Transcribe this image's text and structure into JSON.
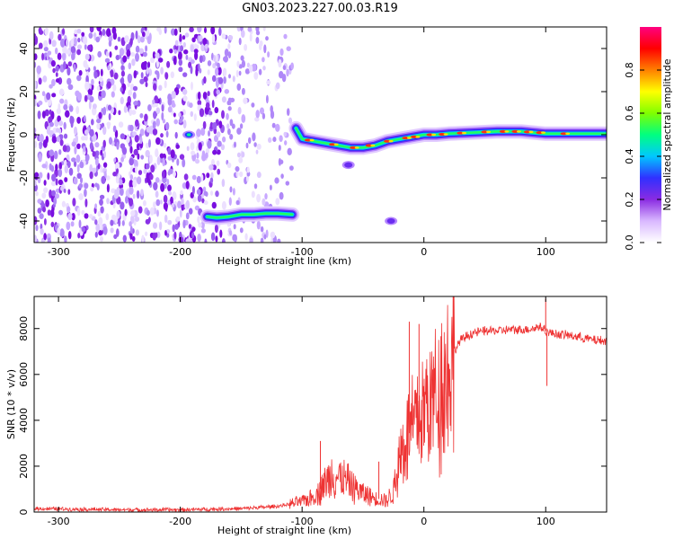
{
  "title": "GN03.2023.227.00.03.R19",
  "chart_data": [
    {
      "type": "heatmap",
      "xlabel": "Height of straight line (km)",
      "ylabel": "Frequency (Hz)",
      "xlim": [
        -320,
        150
      ],
      "ylim": [
        -50,
        50
      ],
      "xticks": [
        -300,
        -200,
        -100,
        0,
        100
      ],
      "yticks": [
        -40,
        -20,
        0,
        20,
        40
      ],
      "noise_region_x": [
        -320,
        -108
      ],
      "echo_tracks": [
        {
          "name": "lower echo",
          "x": [
            -178,
            -170,
            -160,
            -150,
            -140,
            -130,
            -120,
            -108
          ],
          "y": [
            -38,
            -38.5,
            -38,
            -37,
            -37,
            -36.5,
            -36.5,
            -37
          ]
        },
        {
          "name": "trail echo",
          "x": [
            -105,
            -100,
            -90,
            -80,
            -70,
            -60,
            -50,
            -40,
            -30,
            -20,
            -10,
            0,
            10,
            20,
            40,
            60,
            80,
            90,
            100,
            120,
            150
          ],
          "y": [
            3,
            -2,
            -3,
            -4,
            -5,
            -6,
            -6,
            -5,
            -3,
            -2,
            -1,
            0,
            0,
            0.5,
            1,
            1.5,
            1.5,
            1,
            0.5,
            0.5,
            0.5
          ]
        }
      ],
      "isolated_blobs": [
        {
          "x": -193,
          "y": 0
        },
        {
          "x": -62,
          "y": -14
        },
        {
          "x": -27,
          "y": -40
        }
      ],
      "colorbar": {
        "label": "Normalized spectral amplitude",
        "range": [
          0,
          1
        ],
        "ticks": [
          0.0,
          0.2,
          0.4,
          0.6,
          0.8
        ],
        "tick_labels": [
          "0.0",
          "0.2",
          "0.4",
          "0.6",
          "0.8"
        ],
        "colors": [
          "#ffffff",
          "#d9b8ff",
          "#8a2be2",
          "#3030ff",
          "#00c8ff",
          "#00ff80",
          "#80ff00",
          "#ffff00",
          "#ff8000",
          "#ff0000",
          "#ff0080"
        ]
      }
    },
    {
      "type": "line",
      "xlabel": "Height of straight line (km)",
      "ylabel": "SNR (10 * v/v)",
      "xlim": [
        -320,
        150
      ],
      "ylim": [
        0,
        9400
      ],
      "xticks": [
        -300,
        -200,
        -100,
        0,
        100
      ],
      "yticks": [
        0,
        2000,
        4000,
        6000,
        8000
      ],
      "series": [
        {
          "name": "SNR",
          "color": "#ee3333",
          "x": [
            -320,
            -250,
            -200,
            -150,
            -120,
            -110,
            -100,
            -90,
            -80,
            -75,
            -70,
            -60,
            -50,
            -40,
            -30,
            -25,
            -20,
            -15,
            -10,
            -5,
            0,
            5,
            10,
            15,
            20,
            25,
            30,
            40,
            50,
            60,
            70,
            80,
            90,
            95,
            100,
            105,
            110,
            120,
            130,
            140,
            150
          ],
          "y": [
            150,
            100,
            100,
            150,
            250,
            350,
            450,
            700,
            1300,
            1700,
            1500,
            1200,
            800,
            600,
            500,
            900,
            2400,
            3200,
            3600,
            4000,
            4400,
            4800,
            5200,
            5700,
            6200,
            7000,
            7500,
            7800,
            7900,
            7900,
            7950,
            7950,
            8000,
            8100,
            7900,
            7800,
            7750,
            7700,
            7600,
            7500,
            7450
          ]
        }
      ],
      "spikes": [
        {
          "x": 100,
          "y": 9300
        },
        {
          "x": 101,
          "y": 5500
        },
        {
          "x": -12,
          "y": 8300
        },
        {
          "x": -4,
          "y": 8200
        },
        {
          "x": -85,
          "y": 3100
        },
        {
          "x": -37,
          "y": 2200
        }
      ]
    }
  ]
}
